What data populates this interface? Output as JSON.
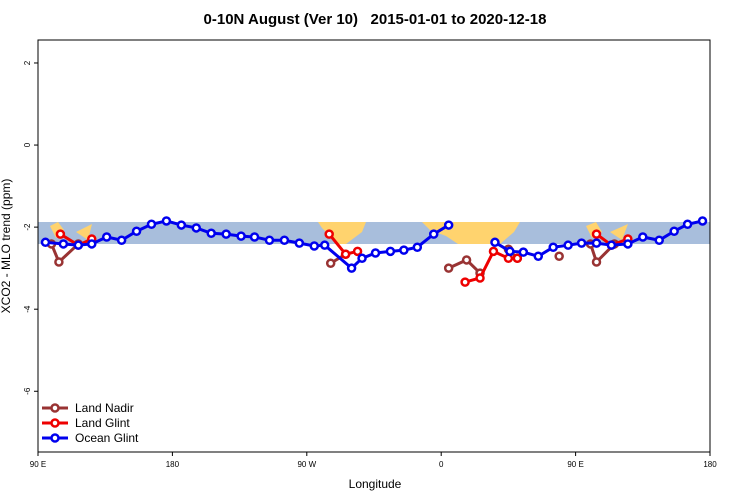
{
  "chart_data": {
    "type": "line",
    "title": "0-10N August (Ver 10)   2015-01-01 to 2020-12-18",
    "x_label": "Longitude",
    "y_label": "XCO2 - MLO trend (ppm)",
    "xlim": [
      90,
      540
    ],
    "xticks": [
      {
        "value": 90,
        "label": "90 E"
      },
      180,
      {
        "value": 270,
        "label": "90 W"
      },
      {
        "value": 360,
        "label": "0"
      },
      {
        "value": 450,
        "label": "90 E"
      },
      {
        "value": 540,
        "label": "180"
      }
    ],
    "ylim": [
      -7.48,
      2.56
    ],
    "yticks": [
      2,
      0,
      -2,
      -4,
      -6
    ],
    "legend": "bottom-left",
    "series": [
      {
        "name": "Land Nadir",
        "color": "#993333",
        "x": [
          99,
          104,
          117,
          null,
          286,
          296,
          null,
          365,
          377,
          386,
          null,
          405,
          411,
          null,
          439,
          null,
          460,
          464,
          476
        ],
        "values": [
          -2.41,
          -2.85,
          -2.41,
          null,
          -2.88,
          -2.66,
          null,
          -3.0,
          -2.8,
          -3.12,
          null,
          -2.54,
          -2.76,
          null,
          -2.71,
          null,
          -2.41,
          -2.85,
          -2.41
        ]
      },
      {
        "name": "Land Glint",
        "color": "#ee0000",
        "x": [
          105,
          117,
          126,
          null,
          285,
          296,
          304,
          null,
          376,
          386,
          395,
          405,
          411,
          null,
          464,
          474,
          485
        ],
        "values": [
          -2.17,
          -2.44,
          -2.29,
          null,
          -2.17,
          -2.66,
          -2.59,
          null,
          -3.34,
          -3.24,
          -2.59,
          -2.76,
          -2.76,
          null,
          -2.17,
          -2.44,
          -2.29
        ]
      },
      {
        "name": "Ocean Glint",
        "color": "#0000ee",
        "x": [
          95,
          107,
          117,
          126,
          136,
          146,
          156,
          166,
          176,
          186,
          196,
          206,
          216,
          226,
          235,
          245,
          255,
          265,
          275,
          282,
          300,
          307,
          316,
          326,
          335,
          344,
          355,
          365,
          null,
          396,
          406,
          415,
          425,
          435,
          445,
          454,
          464,
          474,
          485,
          495,
          506,
          516,
          525,
          535
        ],
        "values": [
          -2.37,
          -2.41,
          -2.44,
          -2.41,
          -2.24,
          -2.32,
          -2.1,
          -1.93,
          -1.85,
          -1.95,
          -2.02,
          -2.15,
          -2.17,
          -2.22,
          -2.24,
          -2.32,
          -2.32,
          -2.39,
          -2.46,
          -2.44,
          -3.0,
          -2.76,
          -2.63,
          -2.59,
          -2.56,
          -2.49,
          -2.17,
          -1.95,
          null,
          -2.37,
          -2.59,
          -2.61,
          -2.71,
          -2.49,
          -2.44,
          -2.39,
          -2.39,
          -2.44,
          -2.41,
          -2.24,
          -2.32,
          -2.1,
          -1.93,
          -1.85
        ]
      }
    ]
  }
}
